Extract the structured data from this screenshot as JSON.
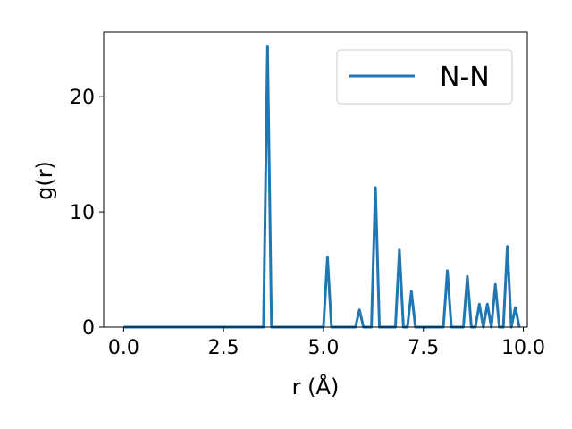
{
  "chart_data": {
    "type": "line",
    "xlabel": "r (Å)",
    "ylabel": "g(r)",
    "xlim": [
      -0.5,
      10.1
    ],
    "ylim": [
      0,
      25.6
    ],
    "xticks": [
      "0.0",
      "2.5",
      "5.0",
      "7.5",
      "10.0"
    ],
    "yticks": [
      "0",
      "10",
      "20"
    ],
    "grid": false,
    "legend_position": "top-right",
    "series": [
      {
        "name": "N-N",
        "color": "#1f77b4",
        "x": [
          0.0,
          3.5,
          3.6,
          3.7,
          5.0,
          5.1,
          5.2,
          5.8,
          5.9,
          6.0,
          6.2,
          6.3,
          6.4,
          6.8,
          6.9,
          7.0,
          7.1,
          7.2,
          7.3,
          8.0,
          8.1,
          8.2,
          8.5,
          8.6,
          8.7,
          8.8,
          8.9,
          9.0,
          9.1,
          9.2,
          9.3,
          9.4,
          9.5,
          9.6,
          9.7,
          9.8,
          9.9
        ],
        "y": [
          0.0,
          0.0,
          24.4,
          0.0,
          0.0,
          6.1,
          0.0,
          0.0,
          1.5,
          0.0,
          0.0,
          12.1,
          0.0,
          0.0,
          6.7,
          0.0,
          0.0,
          3.1,
          0.0,
          0.0,
          4.9,
          0.0,
          0.0,
          4.4,
          0.0,
          0.0,
          2.0,
          0.0,
          2.0,
          0.0,
          3.7,
          0.0,
          0.0,
          7.0,
          0.0,
          1.7,
          0.0
        ]
      }
    ]
  }
}
